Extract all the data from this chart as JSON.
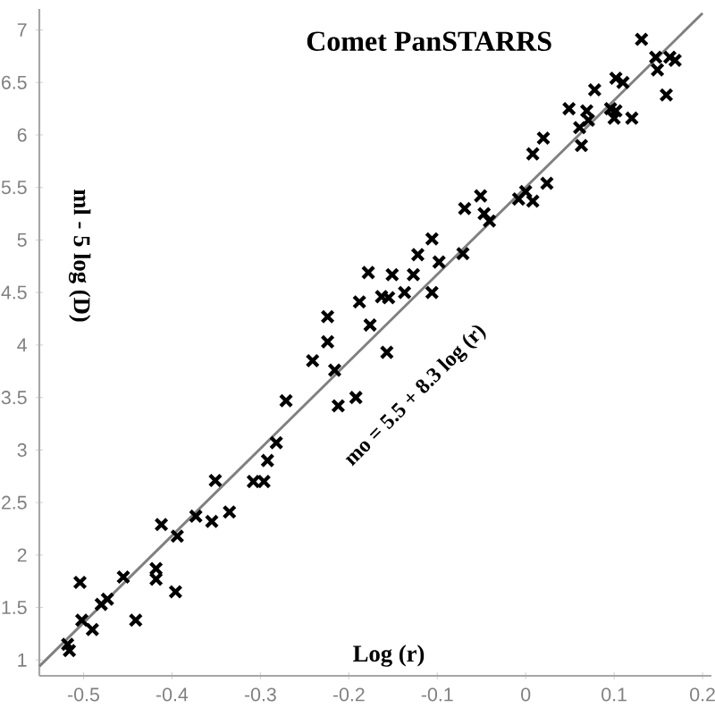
{
  "chart_data": {
    "type": "scatter",
    "title": "Comet PanSTARRS",
    "xlabel": "Log (r)",
    "ylabel": "ml - 5 log (D)",
    "xlim": [
      -0.55,
      0.21
    ],
    "ylim": [
      0.85,
      7.2
    ],
    "xticks": [
      -0.5,
      -0.4,
      -0.3,
      -0.2,
      -0.1,
      0,
      0.1,
      0.2
    ],
    "yticks": [
      1,
      1.5,
      2,
      2.5,
      3,
      3.5,
      4,
      4.5,
      5,
      5.5,
      6,
      6.5,
      7
    ],
    "grid": false,
    "annotations": [
      "mo = 5.5 + 8.3 log (r)"
    ],
    "series": [
      {
        "marker": "cross",
        "color": "#000000",
        "x": [
          -0.518,
          -0.516,
          -0.504,
          -0.502,
          -0.49,
          -0.48,
          -0.473,
          -0.455,
          -0.441,
          -0.418,
          -0.418,
          -0.412,
          -0.396,
          -0.394,
          -0.373,
          -0.355,
          -0.351,
          -0.335,
          -0.308,
          -0.296,
          -0.292,
          -0.282,
          -0.271,
          -0.241,
          -0.216,
          -0.212,
          -0.192,
          -0.224,
          -0.224,
          -0.188,
          -0.176,
          -0.157,
          -0.178,
          -0.163,
          -0.155,
          -0.137,
          -0.151,
          -0.127,
          -0.122,
          -0.106,
          -0.098,
          -0.106,
          -0.071,
          -0.069,
          -0.051,
          -0.047,
          -0.041,
          -0.008,
          0.0,
          0.008,
          0.024,
          0.008,
          0.02,
          0.049,
          0.069,
          0.061,
          0.071,
          0.063,
          0.078,
          0.102,
          0.11,
          0.096,
          0.1,
          0.102,
          0.12,
          0.131,
          0.147,
          0.149,
          0.163,
          0.169,
          0.159
        ],
        "values": [
          1.15,
          1.09,
          1.74,
          1.38,
          1.29,
          1.53,
          1.58,
          1.79,
          1.38,
          1.87,
          1.77,
          2.29,
          1.65,
          2.18,
          2.37,
          2.32,
          2.71,
          2.41,
          2.7,
          2.7,
          2.9,
          3.07,
          3.47,
          3.85,
          3.76,
          3.42,
          3.5,
          4.27,
          4.03,
          4.41,
          4.19,
          3.93,
          4.69,
          4.46,
          4.45,
          4.5,
          4.67,
          4.67,
          4.86,
          5.01,
          4.79,
          4.5,
          4.87,
          5.3,
          5.42,
          5.25,
          5.18,
          5.39,
          5.46,
          5.37,
          5.54,
          5.82,
          5.97,
          6.25,
          6.23,
          6.07,
          6.14,
          5.9,
          6.43,
          6.54,
          6.5,
          6.25,
          6.16,
          6.23,
          6.16,
          6.91,
          6.74,
          6.62,
          6.74,
          6.71,
          6.38
        ]
      },
      {
        "type": "line",
        "color": "#808080",
        "x": [
          -0.55,
          0.2
        ],
        "values": [
          0.94,
          7.16
        ]
      }
    ]
  }
}
